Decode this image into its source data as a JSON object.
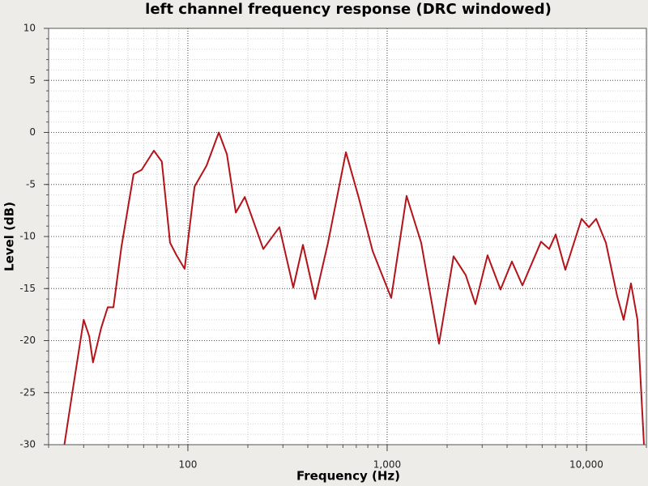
{
  "chart_data": {
    "type": "line",
    "title": "left channel frequency response (DRC windowed)",
    "x_label": "Frequency (Hz)",
    "y_label": "Level (dB)",
    "xscale": "log",
    "xlim": [
      20,
      20000
    ],
    "xticks": [
      100,
      {
        "value": 1000,
        "label": "1,000"
      },
      {
        "value": 10000,
        "label": "10,000"
      }
    ],
    "ylim": [
      -30,
      10
    ],
    "yticks": [
      -30,
      -25,
      -20,
      -15,
      -10,
      -5,
      0,
      5,
      10
    ],
    "grid": true,
    "minor_grid": true,
    "color": "#b3141a",
    "x": [
      24,
      26.5,
      30,
      32,
      33.4,
      36.7,
      39.6,
      42.3,
      46.4,
      53.4,
      58.6,
      67.5,
      74,
      81.4,
      87.7,
      96.3,
      108,
      124,
      143,
      157,
      174,
      193,
      239,
      288,
      338,
      378,
      435,
      505,
      621,
      721,
      846,
      1048,
      1252,
      1482,
      1821,
      2155,
      2479,
      2773,
      3191,
      3707,
      4229,
      4775,
      5920,
      6504,
      7011,
      7840,
      9460,
      10290,
      11190,
      12530,
      14260,
      15380,
      16740,
      18040,
      19450
    ],
    "values": [
      -30,
      -24.6,
      -18,
      -19.6,
      -22.1,
      -18.8,
      -16.8,
      -16.8,
      -11,
      -4,
      -3.6,
      -1.75,
      -2.8,
      -10.6,
      -11.8,
      -13.1,
      -5.2,
      -3.2,
      0,
      -2.1,
      -7.7,
      -6.2,
      -11.2,
      -9.1,
      -14.9,
      -10.8,
      -16,
      -10.6,
      -1.9,
      -6.3,
      -11.4,
      -15.9,
      -6.1,
      -10.6,
      -20.3,
      -11.9,
      -13.7,
      -16.5,
      -11.8,
      -15.1,
      -12.4,
      -14.7,
      -10.5,
      -11.2,
      -9.8,
      -13.2,
      -8.3,
      -9.1,
      -8.3,
      -10.6,
      -15.7,
      -18,
      -14.5,
      -18,
      -30
    ]
  }
}
